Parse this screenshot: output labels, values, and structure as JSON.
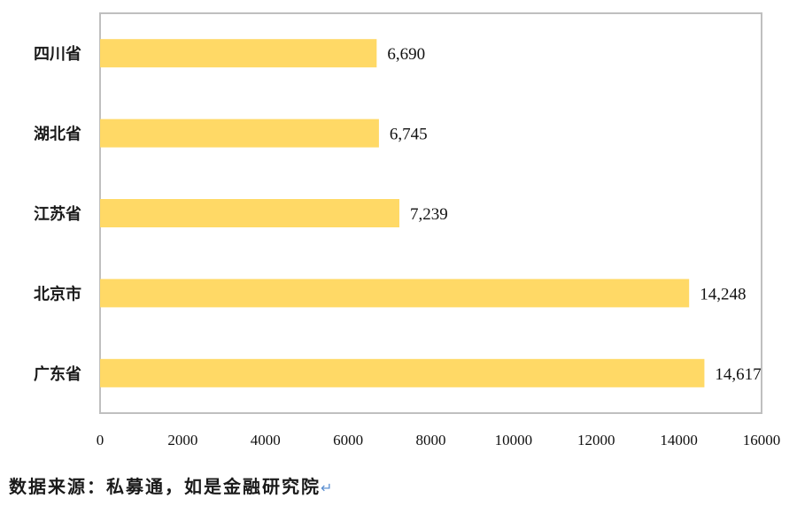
{
  "chart_data": {
    "type": "bar",
    "orientation": "horizontal",
    "categories": [
      "四川省",
      "湖北省",
      "江苏省",
      "北京市",
      "广东省"
    ],
    "values": [
      6690,
      6745,
      7239,
      14248,
      14617
    ],
    "value_labels": [
      "6,690",
      "6,745",
      "7,239",
      "14,248",
      "14,617"
    ],
    "xlim": [
      0,
      16000
    ],
    "x_ticks": [
      "0",
      "2000",
      "4000",
      "6000",
      "8000",
      "10000",
      "12000",
      "14000",
      "16000"
    ],
    "grid": false,
    "bar_color": "#FFD966",
    "frame_color": "#BFBFBF"
  },
  "source_note": "数据来源：私募通，如是金融研究院",
  "return_mark": "↵"
}
